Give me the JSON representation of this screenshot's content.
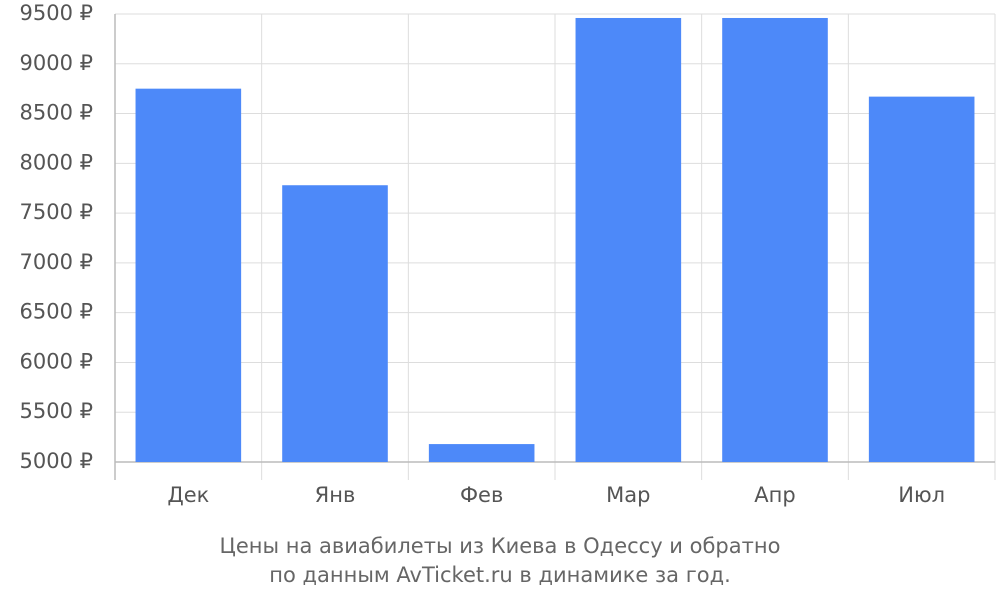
{
  "chart_data": {
    "type": "bar",
    "title": "Цены на авиабилеты из Киева в Одессу и обратно",
    "subtitle": "по данным AvTicket.ru в динамике за год.",
    "categories": [
      "Дек",
      "Янв",
      "Фев",
      "Мар",
      "Апр",
      "Июл"
    ],
    "values": [
      8750,
      7780,
      5180,
      9460,
      9460,
      8670
    ],
    "color": "#4d89f9",
    "ylim": [
      5000,
      9500
    ],
    "yticks": [
      {
        "value": 5000,
        "label": "5000 ₽"
      },
      {
        "value": 5500,
        "label": "5500 ₽"
      },
      {
        "value": 6000,
        "label": "6000 ₽"
      },
      {
        "value": 6500,
        "label": "6500 ₽"
      },
      {
        "value": 7000,
        "label": "7000 ₽"
      },
      {
        "value": 7500,
        "label": "7500 ₽"
      },
      {
        "value": 8000,
        "label": "8000 ₽"
      },
      {
        "value": 8500,
        "label": "8500 ₽"
      },
      {
        "value": 9000,
        "label": "9000 ₽"
      },
      {
        "value": 9500,
        "label": "9500 ₽"
      }
    ],
    "grid": true
  }
}
